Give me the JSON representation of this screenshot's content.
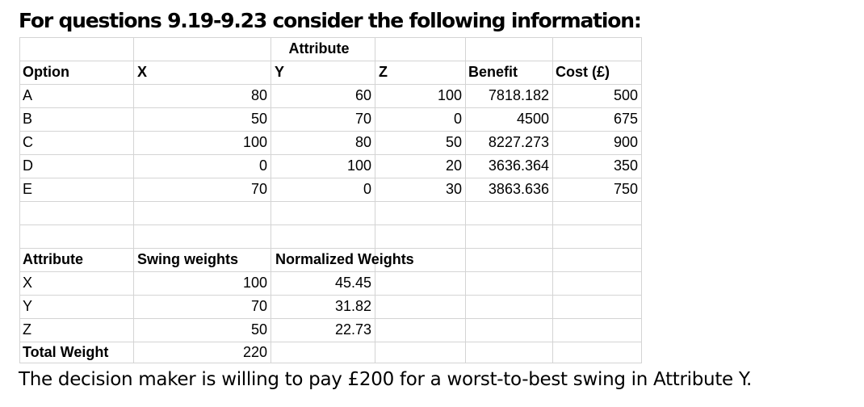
{
  "heading": "For questions 9.19-9.23 consider the following information:",
  "options_table": {
    "group_header": "Attribute",
    "headers": {
      "option": "Option",
      "x": "X",
      "y": "Y",
      "z": "Z",
      "benefit": "Benefit",
      "cost": "Cost (£)"
    },
    "rows": [
      {
        "option": "A",
        "x": "80",
        "y": "60",
        "z": "100",
        "benefit": "7818.182",
        "cost": "500"
      },
      {
        "option": "B",
        "x": "50",
        "y": "70",
        "z": "0",
        "benefit": "4500",
        "cost": "675"
      },
      {
        "option": "C",
        "x": "100",
        "y": "80",
        "z": "50",
        "benefit": "8227.273",
        "cost": "900"
      },
      {
        "option": "D",
        "x": "0",
        "y": "100",
        "z": "20",
        "benefit": "3636.364",
        "cost": "350"
      },
      {
        "option": "E",
        "x": "70",
        "y": "0",
        "z": "30",
        "benefit": "3863.636",
        "cost": "750"
      }
    ]
  },
  "weights_table": {
    "headers": {
      "attribute": "Attribute",
      "swing": "Swing weights",
      "normalized": "Normalized Weights"
    },
    "rows": [
      {
        "attribute": "X",
        "swing": "100",
        "normalized": "45.45"
      },
      {
        "attribute": "Y",
        "swing": "70",
        "normalized": "31.82"
      },
      {
        "attribute": "Z",
        "swing": "50",
        "normalized": "22.73"
      }
    ],
    "total": {
      "label": "Total Weight",
      "value": "220"
    }
  },
  "footer": "The decision maker is willing to pay £200 for a worst-to-best swing in Attribute Y."
}
